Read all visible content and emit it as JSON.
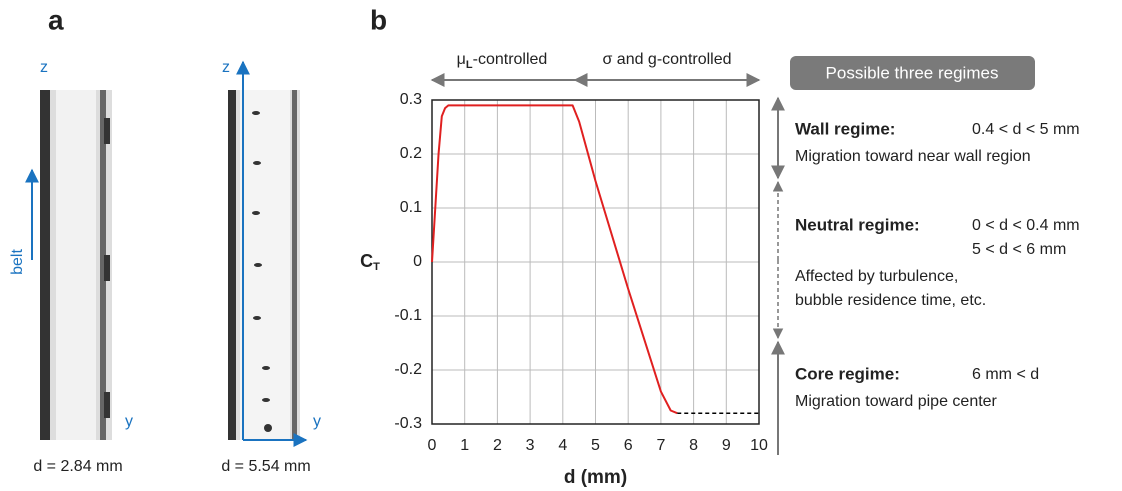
{
  "panel_a": {
    "label": "a",
    "photo1": {
      "z": "z",
      "y": "y",
      "belt": "belt",
      "caption": "d = 2.84 mm"
    },
    "photo2": {
      "z": "z",
      "y": "y",
      "caption": "d = 5.54 mm"
    }
  },
  "chart_data": {
    "type": "line",
    "panel_label": "b",
    "annotations": [
      {
        "parts": [
          "μ",
          "L",
          "-controlled"
        ]
      },
      {
        "parts": [
          "σ and g-controlled"
        ]
      }
    ],
    "ylabel": {
      "parts": [
        "C",
        "T"
      ]
    },
    "xlabel": "d (mm)",
    "x": [
      0,
      0.1,
      0.2,
      0.3,
      0.4,
      0.5,
      4.3,
      4.5,
      5,
      6,
      7,
      7.3,
      7.5,
      10
    ],
    "series": [
      {
        "color": "#e02020",
        "dashed": false,
        "values": [
          0,
          0.1,
          0.2,
          0.27,
          0.285,
          0.29,
          0.29,
          0.26,
          0.15,
          -0.05,
          -0.24,
          -0.275,
          -0.28,
          null
        ]
      },
      {
        "color": "#000000",
        "dashed": true,
        "values": [
          null,
          null,
          null,
          null,
          null,
          null,
          null,
          null,
          null,
          null,
          null,
          null,
          -0.28,
          -0.28
        ]
      }
    ],
    "xlim": [
      0,
      10
    ],
    "xticks": [
      0,
      1,
      2,
      3,
      4,
      5,
      6,
      7,
      8,
      9,
      10
    ],
    "ylim": [
      -0.3,
      0.3
    ],
    "yticks": [
      -0.3,
      -0.2,
      -0.1,
      0,
      0.1,
      0.2,
      0.3
    ],
    "grid": true
  },
  "regimes": {
    "title": "Possible three regimes",
    "wall": {
      "name": "Wall regime:",
      "range": [
        "0.4 < d < 5 mm"
      ],
      "description": [
        "Migration toward near wall region"
      ]
    },
    "neutral": {
      "name": "Neutral regime:",
      "range": [
        "0 < d < 0.4 mm",
        "5 < d < 6 mm"
      ],
      "description": [
        "Affected by turbulence,",
        "bubble residence time, etc."
      ]
    },
    "core": {
      "name": "Core regime:",
      "range": [
        "6 mm < d"
      ],
      "description": [
        "Migration toward pipe center"
      ]
    }
  }
}
